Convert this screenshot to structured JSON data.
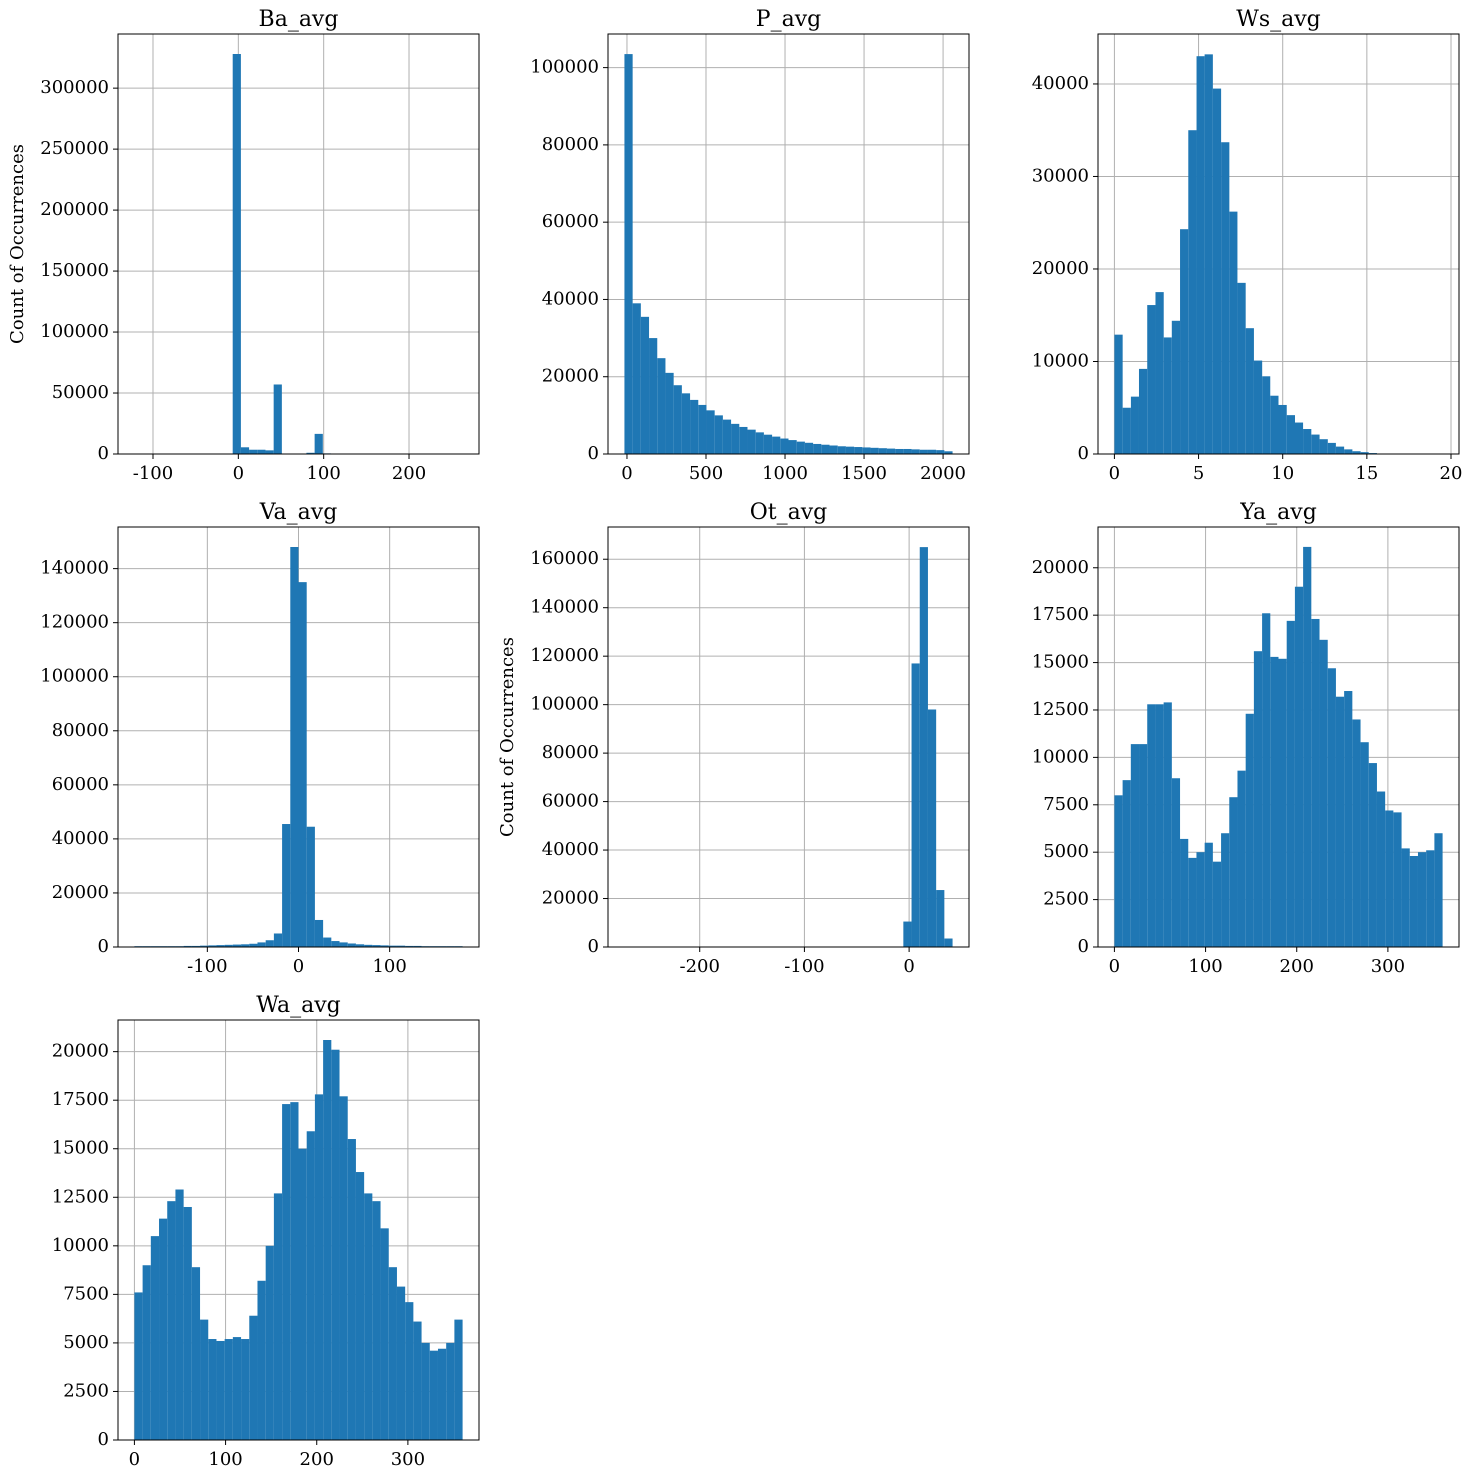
{
  "chart_data": [
    {
      "type": "histogram",
      "title": "Ba_avg",
      "ylabel": "Count of Occurrences",
      "color": "#1f77b4",
      "grid": true,
      "bins": [
        -121.8,
        -112.2,
        -102.6,
        -93.0,
        -83.4,
        -73.8,
        -64.2,
        -54.6,
        -45.0,
        -35.4,
        -25.8,
        -16.2,
        -6.6,
        3.0,
        12.6,
        22.2,
        31.8,
        41.4,
        51.0,
        60.6,
        70.2,
        79.8,
        89.4,
        99.0,
        108.6,
        118.2,
        127.8,
        137.4,
        147.0,
        156.6,
        166.2,
        175.8,
        185.4,
        195.0,
        204.6,
        214.2,
        223.8,
        233.4,
        243.0,
        252.6,
        262.2
      ],
      "values": [
        0,
        0,
        0,
        0,
        0,
        0,
        0,
        0,
        0,
        0,
        100,
        300,
        328000,
        5500,
        3500,
        3500,
        3000,
        57000,
        300,
        100,
        100,
        1000,
        16500,
        500,
        0,
        0,
        0,
        0,
        0,
        0,
        0,
        0,
        0,
        0,
        0,
        0,
        0,
        0,
        0,
        0
      ],
      "xlim": [
        -141,
        282
      ],
      "ylim": [
        0,
        344400
      ],
      "xticks": [
        -100,
        0,
        100,
        200
      ],
      "yticks": [
        0,
        50000,
        100000,
        150000,
        200000,
        250000,
        300000
      ]
    },
    {
      "type": "histogram",
      "title": "P_avg",
      "color": "#1f77b4",
      "grid": true,
      "bins": [
        -16,
        35.9,
        87.8,
        139.7,
        191.6,
        243.5,
        295.4,
        347.3,
        399.2,
        451.1,
        503,
        554.9,
        606.8,
        658.7,
        710.6,
        762.5,
        814.4,
        866.3,
        918.2,
        970.1,
        1022,
        1073.9,
        1125.8,
        1177.7,
        1229.6,
        1281.5,
        1333.4,
        1385.3,
        1437.2,
        1489.1,
        1541,
        1592.9,
        1644.8,
        1696.7,
        1748.6,
        1800.5,
        1852.4,
        1904.3,
        1956.2,
        2008.1,
        2060
      ],
      "values": [
        103500,
        39000,
        35500,
        30000,
        24800,
        21000,
        17800,
        15700,
        14000,
        12700,
        11300,
        10000,
        8900,
        7800,
        7000,
        6300,
        5600,
        5000,
        4500,
        4000,
        3600,
        3200,
        2900,
        2600,
        2400,
        2200,
        2000,
        1900,
        1800,
        1700,
        1600,
        1500,
        1400,
        1300,
        1300,
        1200,
        1100,
        1100,
        1000,
        700
      ],
      "xlim": [
        -120,
        2164
      ],
      "ylim": [
        0,
        108700
      ],
      "xticks": [
        0,
        500,
        1000,
        1500,
        2000
      ],
      "yticks": [
        0,
        20000,
        40000,
        60000,
        80000,
        100000
      ]
    },
    {
      "type": "histogram",
      "title": "Ws_avg",
      "color": "#1f77b4",
      "grid": true,
      "bins": [
        0,
        0.49,
        0.98,
        1.46,
        1.95,
        2.44,
        2.93,
        3.41,
        3.9,
        4.39,
        4.88,
        5.36,
        5.85,
        6.34,
        6.83,
        7.31,
        7.8,
        8.29,
        8.78,
        9.26,
        9.75,
        10.24,
        10.73,
        11.21,
        11.7,
        12.19,
        12.68,
        13.16,
        13.65,
        14.14,
        14.63,
        15.11,
        15.6,
        16.09,
        16.58,
        17.06,
        17.55,
        18.04,
        18.53,
        19.01,
        19.5
      ],
      "values": [
        12900,
        5000,
        6200,
        9200,
        16100,
        17500,
        12600,
        14400,
        24300,
        35000,
        43000,
        43200,
        39500,
        33700,
        26200,
        18500,
        13600,
        10100,
        8400,
        6300,
        5300,
        4200,
        3400,
        2700,
        2100,
        1600,
        1200,
        800,
        500,
        300,
        200,
        100,
        50,
        20,
        10,
        5,
        0,
        0,
        0,
        5
      ],
      "xlim": [
        -0.975,
        20.475
      ],
      "ylim": [
        0,
        45400
      ],
      "xticks": [
        0,
        5,
        10,
        15,
        20
      ],
      "yticks": [
        0,
        10000,
        20000,
        30000,
        40000
      ]
    },
    {
      "type": "histogram",
      "title": "Va_avg",
      "color": "#1f77b4",
      "grid": true,
      "bins": [
        -180,
        -171,
        -162,
        -153,
        -144,
        -135,
        -126,
        -117,
        -108,
        -99,
        -90,
        -81,
        -72,
        -63,
        -54,
        -45,
        -36,
        -27,
        -18,
        -9,
        0,
        9,
        18,
        27,
        36,
        45,
        54,
        63,
        72,
        81,
        90,
        99,
        108,
        117,
        126,
        135,
        144,
        153,
        162,
        171,
        180
      ],
      "values": [
        300,
        300,
        300,
        300,
        300,
        300,
        400,
        400,
        500,
        600,
        700,
        800,
        900,
        1000,
        1200,
        1700,
        2500,
        5000,
        45500,
        148000,
        135000,
        44500,
        10000,
        3500,
        2200,
        1700,
        1300,
        1000,
        800,
        700,
        600,
        500,
        500,
        400,
        400,
        300,
        300,
        300,
        300,
        300
      ],
      "xlim": [
        -198,
        198
      ],
      "ylim": [
        0,
        155400
      ],
      "xticks": [
        -100,
        0,
        100
      ],
      "yticks": [
        0,
        20000,
        40000,
        60000,
        80000,
        100000,
        120000,
        140000
      ]
    },
    {
      "type": "histogram",
      "title": "Ot_avg",
      "ylabel": "Count of Occurrences",
      "color": "#1f77b4",
      "grid": true,
      "bins": [
        -271.9,
        -264.07,
        -256.23,
        -248.4,
        -240.56,
        -232.73,
        -224.89,
        -217.06,
        -209.22,
        -201.39,
        -193.55,
        -185.72,
        -177.88,
        -170.05,
        -162.21,
        -154.38,
        -146.54,
        -138.71,
        -130.87,
        -123.04,
        -115.2,
        -107.37,
        -99.53,
        -91.7,
        -83.86,
        -76.03,
        -68.19,
        -60.36,
        -52.52,
        -44.69,
        -36.85,
        -29.02,
        -21.18,
        -13.35,
        -5.51,
        2.32,
        10.16,
        17.99,
        25.83,
        33.66,
        41.5
      ],
      "values": [
        5,
        0,
        0,
        0,
        0,
        0,
        0,
        0,
        0,
        0,
        0,
        0,
        0,
        0,
        0,
        0,
        0,
        0,
        0,
        0,
        0,
        0,
        0,
        0,
        0,
        0,
        0,
        0,
        0,
        0,
        0,
        0,
        0,
        50,
        10500,
        117000,
        165000,
        98000,
        23500,
        3500
      ],
      "xlim": [
        -287.6,
        57.2
      ],
      "ylim": [
        0,
        173300
      ],
      "xticks": [
        -200,
        -100,
        0
      ],
      "yticks": [
        0,
        20000,
        40000,
        60000,
        80000,
        100000,
        120000,
        140000,
        160000
      ]
    },
    {
      "type": "histogram",
      "title": "Ya_avg",
      "color": "#1f77b4",
      "grid": true,
      "bins": [
        0,
        9,
        18,
        27,
        36,
        45,
        54,
        63,
        72,
        81,
        90,
        99,
        108,
        117,
        126,
        135,
        144,
        153,
        162,
        171,
        180,
        189,
        198,
        207,
        216,
        225,
        234,
        243,
        252,
        261,
        270,
        279,
        288,
        297,
        306,
        315,
        324,
        333,
        342,
        351,
        360
      ],
      "values": [
        8000,
        8800,
        10700,
        10700,
        12800,
        12800,
        12900,
        8900,
        5700,
        4700,
        5000,
        5500,
        4500,
        6000,
        7900,
        9300,
        12300,
        15600,
        17600,
        15300,
        15200,
        17200,
        19000,
        21100,
        17300,
        16200,
        14700,
        13200,
        13500,
        12000,
        10800,
        9700,
        8200,
        7200,
        7100,
        5200,
        4800,
        5000,
        5100,
        6000
      ],
      "xlim": [
        -18,
        378
      ],
      "ylim": [
        0,
        22150
      ],
      "xticks": [
        0,
        100,
        200,
        300
      ],
      "yticks": [
        0,
        2500,
        5000,
        7500,
        10000,
        12500,
        15000,
        17500,
        20000
      ]
    },
    {
      "type": "histogram",
      "title": "Wa_avg",
      "color": "#1f77b4",
      "grid": true,
      "bins": [
        0,
        9,
        18,
        27,
        36,
        45,
        54,
        63,
        72,
        81,
        90,
        99,
        108,
        117,
        126,
        135,
        144,
        153,
        162,
        171,
        180,
        189,
        198,
        207,
        216,
        225,
        234,
        243,
        252,
        261,
        270,
        279,
        288,
        297,
        306,
        315,
        324,
        333,
        342,
        351,
        360
      ],
      "values": [
        7600,
        9000,
        10500,
        11400,
        12300,
        12900,
        12000,
        8900,
        6200,
        5200,
        5100,
        5200,
        5300,
        5200,
        6400,
        8200,
        10000,
        12700,
        17300,
        17400,
        15000,
        15900,
        17800,
        20600,
        20100,
        17700,
        15500,
        13800,
        12700,
        12300,
        10900,
        8900,
        7900,
        7100,
        6100,
        5000,
        4600,
        4700,
        5000,
        6200
      ],
      "xlim": [
        -18,
        378
      ],
      "ylim": [
        0,
        21630
      ],
      "xticks": [
        0,
        100,
        200,
        300
      ],
      "yticks": [
        0,
        2500,
        5000,
        7500,
        10000,
        12500,
        15000,
        17500,
        20000
      ]
    }
  ]
}
